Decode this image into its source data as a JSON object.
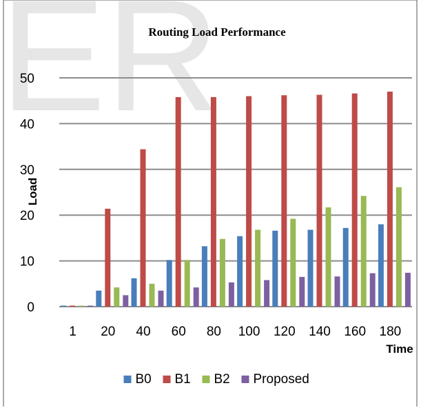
{
  "watermark_text": "ER",
  "chart_data": {
    "type": "bar",
    "title": "Routing Load Performance",
    "xlabel": "Time",
    "ylabel": "Load",
    "categories": [
      "1",
      "20",
      "40",
      "60",
      "80",
      "100",
      "120",
      "140",
      "160",
      "180"
    ],
    "ylim": [
      0,
      50
    ],
    "yticks": [
      0,
      10,
      20,
      30,
      40,
      50
    ],
    "grid": true,
    "legend_position": "bottom",
    "series": [
      {
        "name": "B0",
        "color": "#4a7ebb",
        "values": [
          0,
          3.5,
          6.2,
          10.2,
          13.2,
          15.4,
          16.6,
          16.8,
          17.2,
          18
        ]
      },
      {
        "name": "B1",
        "color": "#be4b48",
        "values": [
          0,
          21.4,
          34.4,
          45.8,
          45.8,
          46,
          46.2,
          46.3,
          46.6,
          47
        ]
      },
      {
        "name": "B2",
        "color": "#98b954",
        "values": [
          0,
          4.2,
          5,
          10.2,
          14.8,
          16.8,
          19.2,
          21.7,
          24.2,
          26.1
        ]
      },
      {
        "name": "Proposed",
        "color": "#7d60a0",
        "values": [
          0,
          2.5,
          3.5,
          4.2,
          5.3,
          5.8,
          6.5,
          6.6,
          7.3,
          7.4
        ]
      }
    ]
  }
}
